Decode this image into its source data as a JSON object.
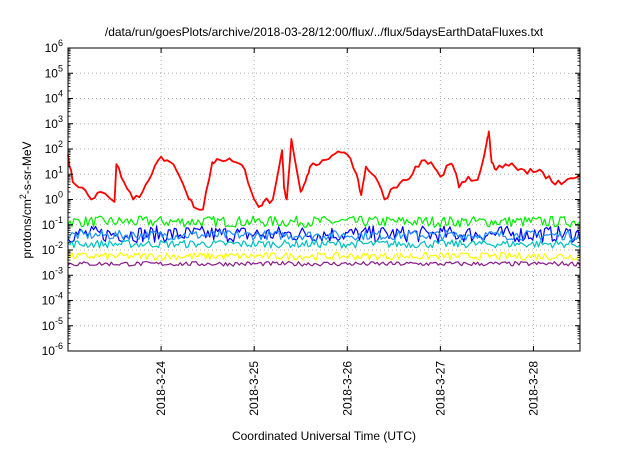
{
  "chart_data": {
    "type": "line",
    "title": "/data/run/goesPlots/archive/2018-03-28/12:00/flux/../flux/5daysEarthDataFluxes.txt",
    "xlabel": "Coordinated Universal Time (UTC)",
    "ylabel_main": "protons/cm",
    "ylabel_sup": "2",
    "ylabel_rest": "-s-sr-MeV",
    "y_scale": "log",
    "ylim_exp": [
      -6,
      6
    ],
    "xlim_days": [
      0,
      5.5
    ],
    "grid": true,
    "x_ticks": [
      {
        "day": 1,
        "label": "2018-3-24"
      },
      {
        "day": 2,
        "label": "2018-3-25"
      },
      {
        "day": 3,
        "label": "2018-3-26"
      },
      {
        "day": 4,
        "label": "2018-3-27"
      },
      {
        "day": 5,
        "label": "2018-3-28"
      }
    ],
    "colors": {
      "red": "#ff0000",
      "green": "#00ee00",
      "blue": "#0000ff",
      "lightblue": "#1e90ff",
      "cyan": "#00c0c0",
      "yellow": "#ffff00",
      "purple": "#8b1a89"
    },
    "series": [
      {
        "color": "red",
        "x": [
          0,
          0.05,
          0.15,
          0.25,
          0.35,
          0.5,
          0.52,
          0.6,
          0.7,
          0.8,
          0.9,
          1.0,
          1.1,
          1.2,
          1.3,
          1.35,
          1.45,
          1.55,
          1.6,
          1.7,
          1.8,
          1.9,
          2.0,
          2.05,
          2.1,
          2.2,
          2.3,
          2.32,
          2.35,
          2.4,
          2.5,
          2.55,
          2.6,
          2.7,
          2.8,
          2.9,
          3.0,
          3.1,
          3.15,
          3.2,
          3.3,
          3.4,
          3.5,
          3.6,
          3.7,
          3.8,
          3.9,
          4.0,
          4.1,
          4.15,
          4.2,
          4.3,
          4.4,
          4.5,
          4.52,
          4.55,
          4.6,
          4.7,
          4.8,
          4.9,
          5.0,
          5.1,
          5.2,
          5.3,
          5.4,
          5.5
        ],
        "y": [
          60,
          5,
          3,
          1,
          2,
          0.8,
          25,
          5,
          1,
          2,
          10,
          50,
          30,
          8,
          1,
          0.5,
          0.4,
          30,
          40,
          35,
          30,
          15,
          1,
          0.5,
          0.8,
          1,
          90,
          3,
          1,
          250,
          2,
          5,
          20,
          25,
          40,
          80,
          60,
          10,
          1.5,
          20,
          8,
          1,
          3,
          6,
          10,
          35,
          30,
          8,
          25,
          15,
          3,
          8,
          6,
          200,
          500,
          30,
          15,
          25,
          20,
          15,
          12,
          12,
          5,
          4,
          7,
          10
        ]
      },
      {
        "color": "green",
        "band": [
          0.08,
          0.22
        ]
      },
      {
        "color": "blue",
        "band": [
          0.02,
          0.09
        ]
      },
      {
        "color": "lightblue",
        "band": [
          0.025,
          0.06
        ]
      },
      {
        "color": "cyan",
        "band": [
          0.012,
          0.025
        ]
      },
      {
        "color": "yellow",
        "band": [
          0.004,
          0.008
        ]
      },
      {
        "color": "purple",
        "band": [
          0.0023,
          0.0035
        ]
      }
    ]
  }
}
